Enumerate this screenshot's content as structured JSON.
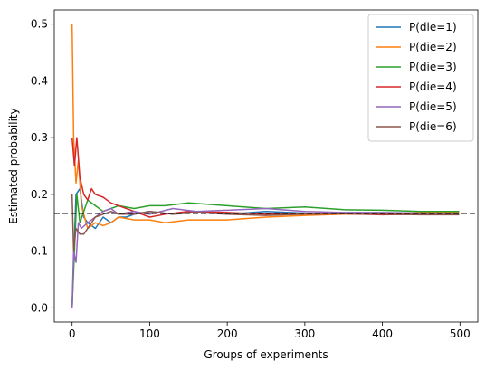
{
  "chart_data": {
    "type": "line",
    "xlabel": "Groups of experiments",
    "ylabel": "Estimated probability",
    "xlim": [
      -23,
      523
    ],
    "ylim": [
      -0.025,
      0.525
    ],
    "xticks": [
      0,
      100,
      200,
      300,
      400,
      500
    ],
    "yticks": [
      0.0,
      0.1,
      0.2,
      0.3,
      0.4,
      0.5
    ],
    "xtick_labels": [
      "0",
      "100",
      "200",
      "300",
      "400",
      "500"
    ],
    "ytick_labels": [
      "0.0",
      "0.1",
      "0.2",
      "0.3",
      "0.4",
      "0.5"
    ],
    "grid": false,
    "legend_position": "upper-right",
    "reference_line": {
      "y": 0.1667,
      "style": "dashed",
      "color": "#000000"
    },
    "series": [
      {
        "name": "P(die=1)",
        "color": "#1f77b4",
        "x": [
          0,
          5,
          10,
          15,
          20,
          30,
          40,
          50,
          60,
          70,
          80,
          100,
          130,
          160,
          200,
          250,
          300,
          350,
          400,
          450,
          499
        ],
        "y": [
          0.0,
          0.2,
          0.21,
          0.16,
          0.15,
          0.14,
          0.16,
          0.15,
          0.16,
          0.16,
          0.165,
          0.17,
          0.165,
          0.17,
          0.165,
          0.17,
          0.167,
          0.165,
          0.165,
          0.166,
          0.166
        ]
      },
      {
        "name": "P(die=2)",
        "color": "#ff7f0e",
        "x": [
          0,
          2,
          5,
          8,
          12,
          20,
          30,
          40,
          50,
          60,
          80,
          100,
          120,
          150,
          200,
          250,
          300,
          350,
          400,
          450,
          499
        ],
        "y": [
          0.5,
          0.3,
          0.22,
          0.26,
          0.18,
          0.14,
          0.15,
          0.145,
          0.15,
          0.16,
          0.155,
          0.155,
          0.15,
          0.155,
          0.155,
          0.16,
          0.163,
          0.165,
          0.165,
          0.168,
          0.169
        ]
      },
      {
        "name": "P(die=3)",
        "color": "#2ca02c",
        "x": [
          0,
          3,
          6,
          10,
          15,
          20,
          30,
          40,
          50,
          60,
          80,
          100,
          120,
          150,
          200,
          250,
          300,
          350,
          400,
          450,
          499
        ],
        "y": [
          0.0,
          0.1,
          0.2,
          0.15,
          0.17,
          0.19,
          0.18,
          0.17,
          0.175,
          0.18,
          0.175,
          0.18,
          0.18,
          0.185,
          0.18,
          0.175,
          0.178,
          0.173,
          0.172,
          0.17,
          0.17
        ]
      },
      {
        "name": "P(die=4)",
        "color": "#d62728",
        "x": [
          0,
          3,
          6,
          10,
          15,
          20,
          25,
          30,
          40,
          50,
          60,
          80,
          100,
          120,
          150,
          200,
          250,
          300,
          350,
          400,
          450,
          499
        ],
        "y": [
          0.3,
          0.25,
          0.3,
          0.23,
          0.2,
          0.19,
          0.21,
          0.2,
          0.195,
          0.185,
          0.18,
          0.17,
          0.16,
          0.165,
          0.17,
          0.168,
          0.165,
          0.165,
          0.166,
          0.164,
          0.165,
          0.165
        ]
      },
      {
        "name": "P(die=5)",
        "color": "#9467bd",
        "x": [
          0,
          2,
          5,
          8,
          12,
          20,
          30,
          40,
          50,
          60,
          80,
          100,
          130,
          160,
          200,
          250,
          300,
          350,
          400,
          450,
          499
        ],
        "y": [
          0.0,
          0.1,
          0.08,
          0.15,
          0.14,
          0.15,
          0.16,
          0.17,
          0.175,
          0.165,
          0.17,
          0.165,
          0.175,
          0.17,
          0.172,
          0.175,
          0.17,
          0.168,
          0.168,
          0.167,
          0.166
        ]
      },
      {
        "name": "P(die=6)",
        "color": "#8c564b",
        "x": [
          0,
          2,
          5,
          10,
          15,
          20,
          30,
          40,
          50,
          60,
          80,
          100,
          130,
          160,
          200,
          250,
          300,
          350,
          400,
          450,
          499
        ],
        "y": [
          0.2,
          0.1,
          0.14,
          0.13,
          0.13,
          0.14,
          0.16,
          0.165,
          0.17,
          0.165,
          0.165,
          0.17,
          0.165,
          0.168,
          0.165,
          0.163,
          0.165,
          0.166,
          0.165,
          0.164,
          0.164
        ]
      }
    ]
  }
}
